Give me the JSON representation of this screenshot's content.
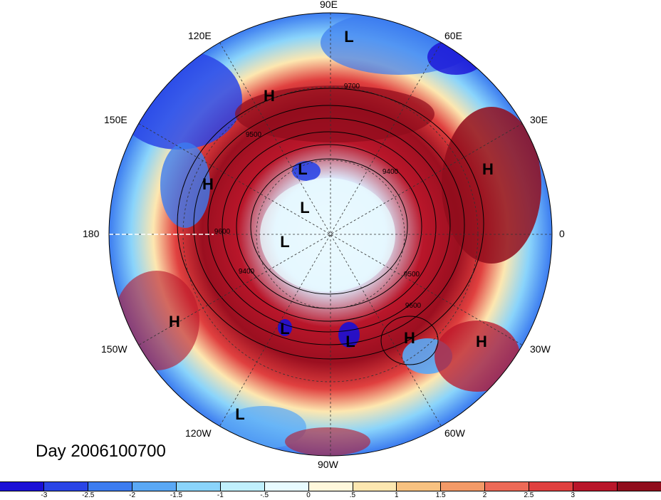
{
  "title": "Day 2006100700",
  "longitude_labels": {
    "top": "90E",
    "top_right": "60E",
    "right_upper": "30E",
    "right": "0",
    "right_lower": "30W",
    "bottom_right": "60W",
    "bottom": "90W",
    "bottom_left": "120W",
    "left_lower": "150W",
    "left": "180",
    "left_upper": "150E",
    "top_left": "120E"
  },
  "pressure_centers": [
    {
      "label": "L"
    },
    {
      "label": "H"
    },
    {
      "label": "L"
    },
    {
      "label": "H"
    },
    {
      "label": "H"
    },
    {
      "label": "L"
    },
    {
      "label": "L"
    },
    {
      "label": "H"
    },
    {
      "label": "L"
    },
    {
      "label": "L"
    },
    {
      "label": "H"
    },
    {
      "label": "H"
    },
    {
      "label": "L"
    }
  ],
  "contour_labels": [
    "9700",
    "9500",
    "9400",
    "9600",
    "9400",
    "9500",
    "9600"
  ],
  "colorbar": {
    "colors": [
      "#1a0fd6",
      "#2a45e6",
      "#3c7cf0",
      "#5aa8f5",
      "#8ad4fb",
      "#c0f0fd",
      "#e8fbff",
      "#fff8dc",
      "#fde7b0",
      "#f8c281",
      "#f39a67",
      "#ed6a57",
      "#e0403f",
      "#b9162a",
      "#900d1c"
    ],
    "ticks": [
      "-3",
      "-2.5",
      "-2",
      "-1.5",
      "-1",
      "-.5",
      "0",
      ".5",
      "1",
      "1.5",
      "2",
      "2.5",
      "3"
    ]
  }
}
